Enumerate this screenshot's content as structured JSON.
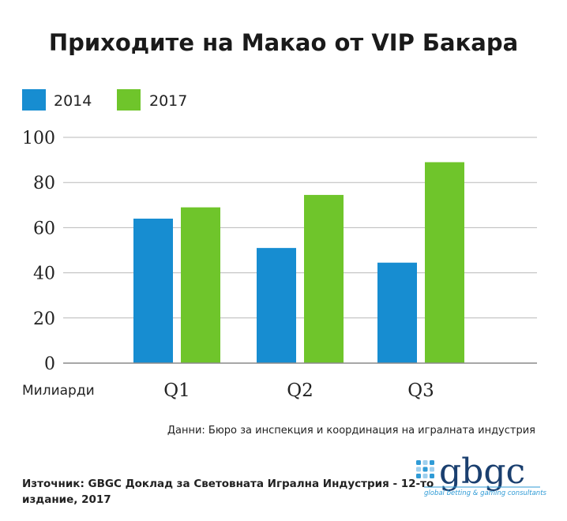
{
  "chart_data": {
    "type": "bar",
    "title": "Приходите на Макао от VIP Бакара",
    "unit_label": "Милиарди",
    "categories": [
      "Q1",
      "Q2",
      "Q3"
    ],
    "series": [
      {
        "name": "2014",
        "values": [
          64,
          51,
          44.5
        ],
        "color": "#178dd1"
      },
      {
        "name": "2017",
        "values": [
          69,
          74.5,
          89
        ],
        "color": "#6fc52b"
      }
    ],
    "ylim": [
      0,
      100
    ],
    "yticks": [
      "0",
      "20",
      "40",
      "60",
      "80",
      "100"
    ],
    "grid": true,
    "legend_position": "top-left",
    "data_note": "Данни: Бюро за инспекция и координация на игралната индустрия"
  },
  "footer": {
    "source_line1": "Източник: GBGC Доклад за Световната Игрална Индустрия - 12-то",
    "source_line2": "издание, 2017"
  },
  "logo": {
    "wordmark": "gbgc",
    "tagline": "global betting & gaming consultants",
    "dot_colors": [
      "#2f9bd6",
      "#9fd0ee"
    ]
  }
}
